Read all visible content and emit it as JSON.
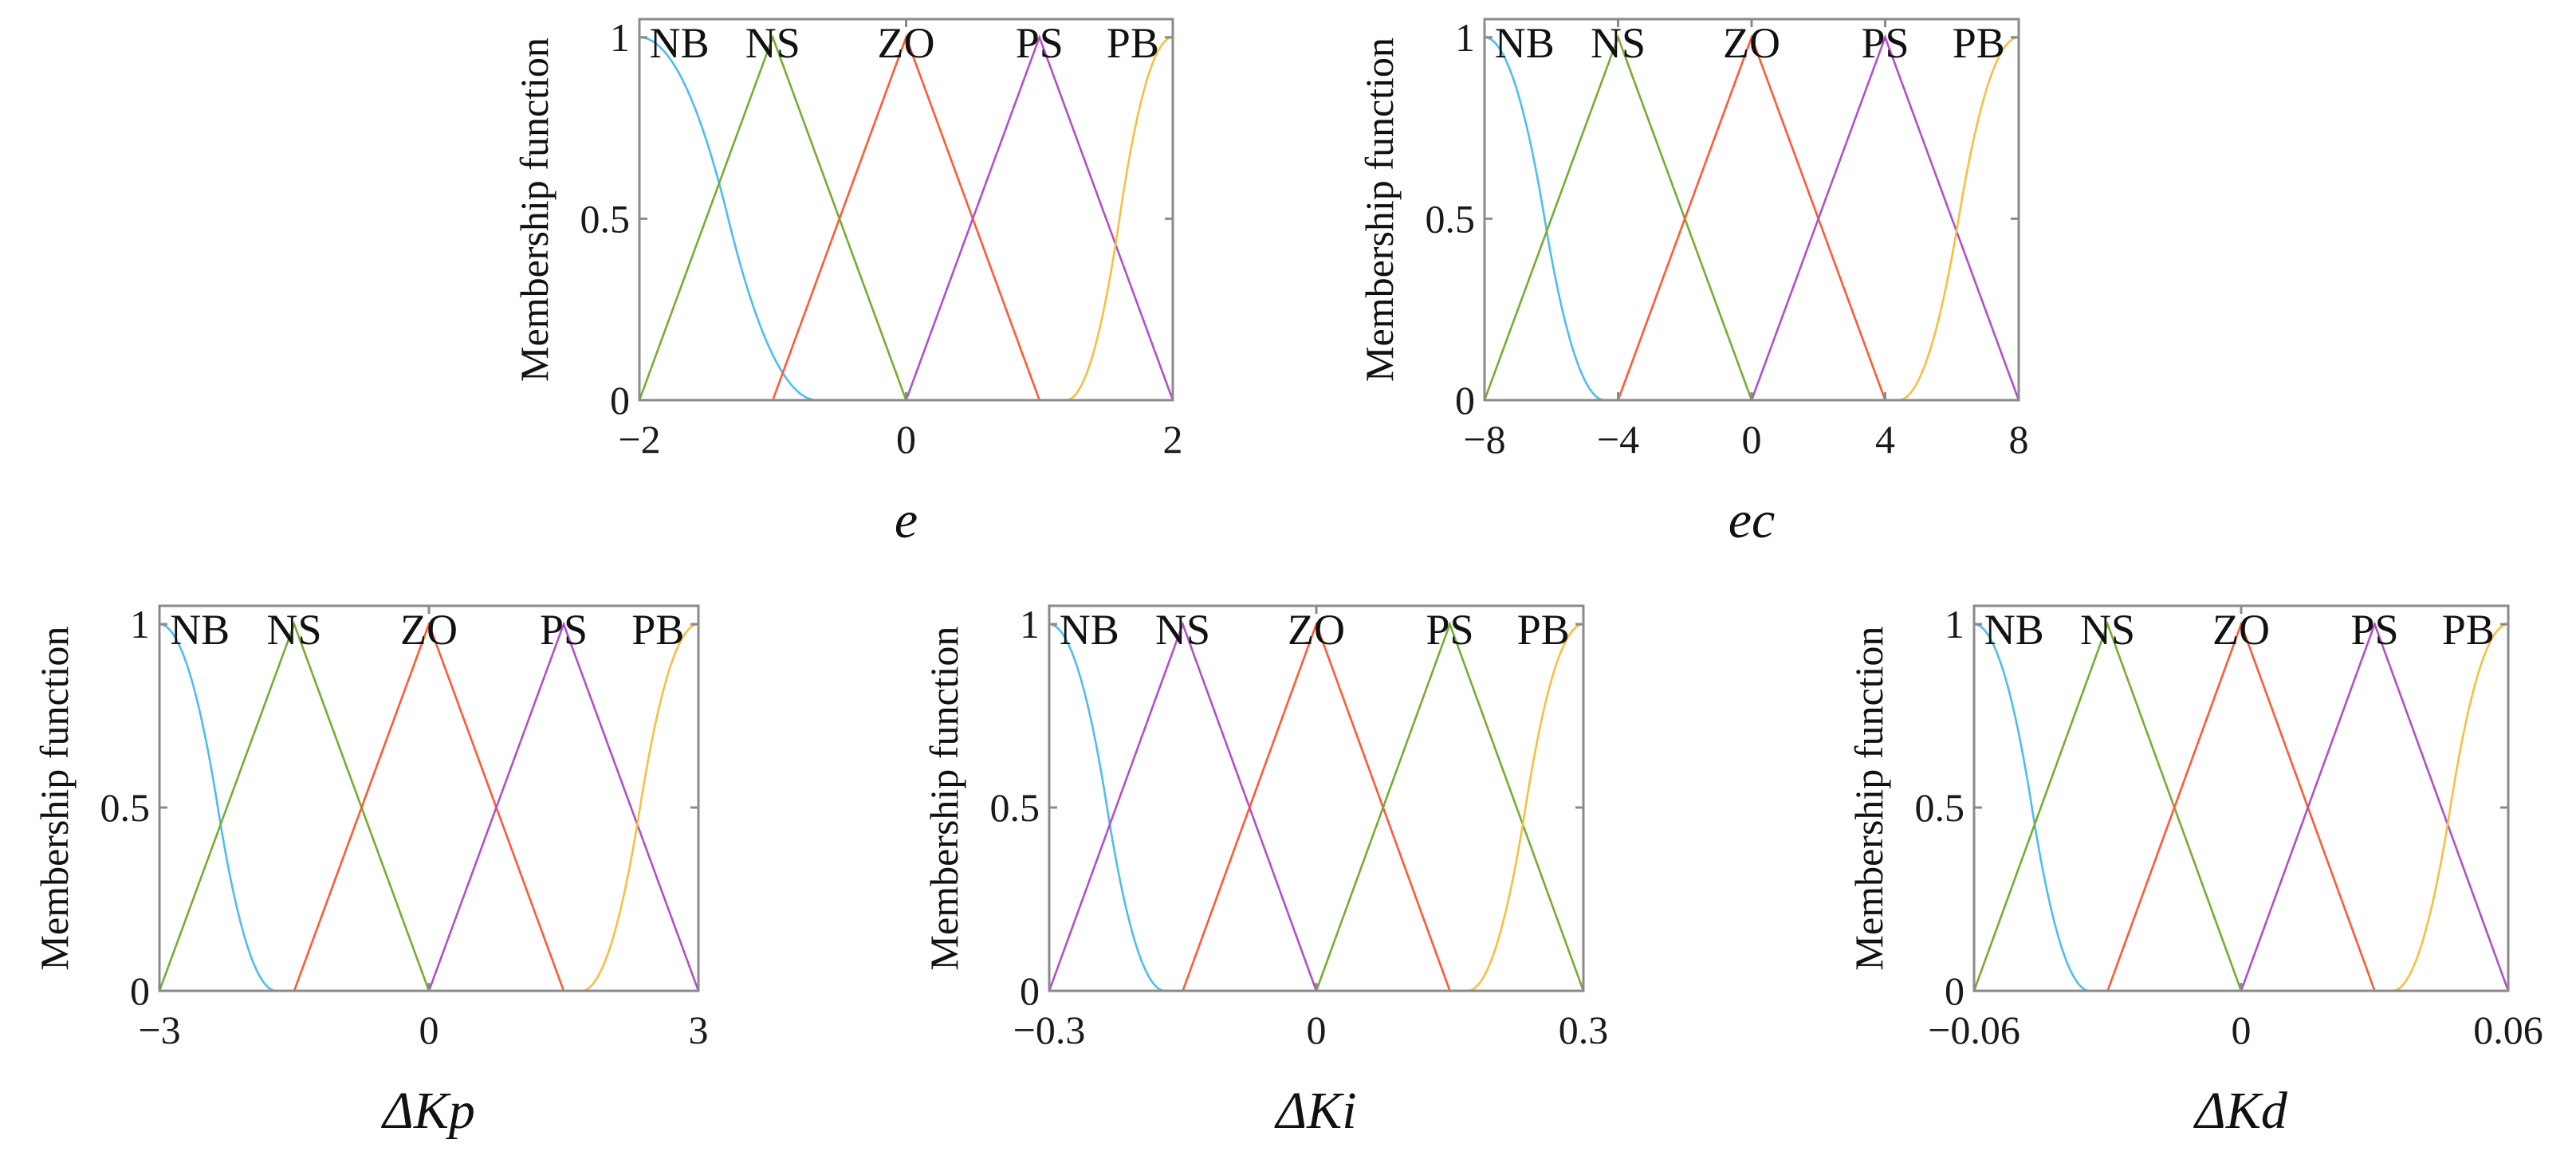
{
  "colors": {
    "NB": "#4DBEEE",
    "green": "#77AC30",
    "red": "#FF5A36",
    "purple": "#B050C8",
    "PB": "#F5C040"
  },
  "chart_data": [
    {
      "type": "line",
      "title": "",
      "xlabel": "e",
      "ylabel": "Membership function",
      "xlim": [
        -2,
        2
      ],
      "ylim": [
        0,
        1.05
      ],
      "xticks": [
        -2,
        0,
        2
      ],
      "xtick_labels": [
        "−2",
        "0",
        "2"
      ],
      "yticks": [
        0,
        0.5,
        1
      ],
      "ytick_labels": [
        "0",
        "0.5",
        "1"
      ],
      "series": [
        {
          "name": "NB",
          "shape": "zmf",
          "params": [
            -2,
            -0.667
          ],
          "color": "#4DBEEE"
        },
        {
          "name": "NS",
          "shape": "trimf",
          "params": [
            -2,
            -1,
            0
          ],
          "color": "#77AC30"
        },
        {
          "name": "ZO",
          "shape": "trimf",
          "params": [
            -1,
            0,
            1
          ],
          "color": "#FF5A36"
        },
        {
          "name": "PS",
          "shape": "trimf",
          "params": [
            0,
            1,
            2
          ],
          "color": "#B050C8"
        },
        {
          "name": "PB",
          "shape": "smf",
          "params": [
            1.2,
            2
          ],
          "color": "#F5C040"
        }
      ]
    },
    {
      "type": "line",
      "title": "",
      "xlabel": "ec",
      "ylabel": "Membership function",
      "xlim": [
        -8,
        8
      ],
      "ylim": [
        0,
        1.05
      ],
      "xticks": [
        -8,
        -4,
        0,
        4,
        8
      ],
      "xtick_labels": [
        "−8",
        "−4",
        "0",
        "4",
        "8"
      ],
      "yticks": [
        0,
        0.5,
        1
      ],
      "ytick_labels": [
        "0",
        "0.5",
        "1"
      ],
      "series": [
        {
          "name": "NB",
          "shape": "zmf",
          "params": [
            -8,
            -4.4
          ],
          "color": "#4DBEEE"
        },
        {
          "name": "NS",
          "shape": "trimf",
          "params": [
            -8,
            -4,
            0
          ],
          "color": "#77AC30"
        },
        {
          "name": "ZO",
          "shape": "trimf",
          "params": [
            -4,
            0,
            4
          ],
          "color": "#FF5A36"
        },
        {
          "name": "PS",
          "shape": "trimf",
          "params": [
            0,
            4,
            8
          ],
          "color": "#B050C8"
        },
        {
          "name": "PB",
          "shape": "smf",
          "params": [
            4.4,
            8
          ],
          "color": "#F5C040"
        }
      ]
    },
    {
      "type": "line",
      "title": "",
      "xlabel": "ΔKp",
      "ylabel": "Membership function",
      "xlim": [
        -3,
        3
      ],
      "ylim": [
        0,
        1.05
      ],
      "xticks": [
        -3,
        0,
        3
      ],
      "xtick_labels": [
        "−3",
        "0",
        "3"
      ],
      "yticks": [
        0,
        0.5,
        1
      ],
      "ytick_labels": [
        "0",
        "0.5",
        "1"
      ],
      "series": [
        {
          "name": "NB",
          "shape": "zmf",
          "params": [
            -3,
            -1.7
          ],
          "color": "#4DBEEE"
        },
        {
          "name": "NS",
          "shape": "trimf",
          "params": [
            -3,
            -1.5,
            0
          ],
          "color": "#77AC30"
        },
        {
          "name": "ZO",
          "shape": "trimf",
          "params": [
            -1.5,
            0,
            1.5
          ],
          "color": "#FF5A36"
        },
        {
          "name": "PS",
          "shape": "trimf",
          "params": [
            0,
            1.5,
            3
          ],
          "color": "#B050C8"
        },
        {
          "name": "PB",
          "shape": "smf",
          "params": [
            1.7,
            3
          ],
          "color": "#F5C040"
        }
      ]
    },
    {
      "type": "line",
      "title": "",
      "xlabel": "ΔKi",
      "ylabel": "Membership function",
      "xlim": [
        -0.3,
        0.3
      ],
      "ylim": [
        0,
        1.05
      ],
      "xticks": [
        -0.3,
        0,
        0.3
      ],
      "xtick_labels": [
        "−0.3",
        "0",
        "0.3"
      ],
      "yticks": [
        0,
        0.5,
        1
      ],
      "ytick_labels": [
        "0",
        "0.5",
        "1"
      ],
      "series": [
        {
          "name": "NB",
          "shape": "zmf",
          "params": [
            -0.3,
            -0.17
          ],
          "color": "#4DBEEE"
        },
        {
          "name": "NS",
          "shape": "trimf",
          "params": [
            -0.3,
            -0.15,
            0
          ],
          "color": "#B050C8"
        },
        {
          "name": "ZO",
          "shape": "trimf",
          "params": [
            -0.15,
            0,
            0.15
          ],
          "color": "#FF5A36"
        },
        {
          "name": "PS",
          "shape": "trimf",
          "params": [
            0,
            0.15,
            0.3
          ],
          "color": "#77AC30"
        },
        {
          "name": "PB",
          "shape": "smf",
          "params": [
            0.17,
            0.3
          ],
          "color": "#F5C040"
        }
      ]
    },
    {
      "type": "line",
      "title": "",
      "xlabel": "ΔKd",
      "ylabel": "Membership function",
      "xlim": [
        -0.06,
        0.06
      ],
      "ylim": [
        0,
        1.05
      ],
      "xticks": [
        -0.06,
        0,
        0.06
      ],
      "xtick_labels": [
        "−0.06",
        "0",
        "0.06"
      ],
      "yticks": [
        0,
        0.5,
        1
      ],
      "ytick_labels": [
        "0",
        "0.5",
        "1"
      ],
      "series": [
        {
          "name": "NB",
          "shape": "zmf",
          "params": [
            -0.06,
            -0.034
          ],
          "color": "#4DBEEE"
        },
        {
          "name": "NS",
          "shape": "trimf",
          "params": [
            -0.06,
            -0.03,
            0
          ],
          "color": "#77AC30"
        },
        {
          "name": "ZO",
          "shape": "trimf",
          "params": [
            -0.03,
            0,
            0.03
          ],
          "color": "#FF5A36"
        },
        {
          "name": "PS",
          "shape": "trimf",
          "params": [
            0,
            0.03,
            0.06
          ],
          "color": "#B050C8"
        },
        {
          "name": "PB",
          "shape": "smf",
          "params": [
            0.034,
            0.06
          ],
          "color": "#F5C040"
        }
      ]
    }
  ]
}
